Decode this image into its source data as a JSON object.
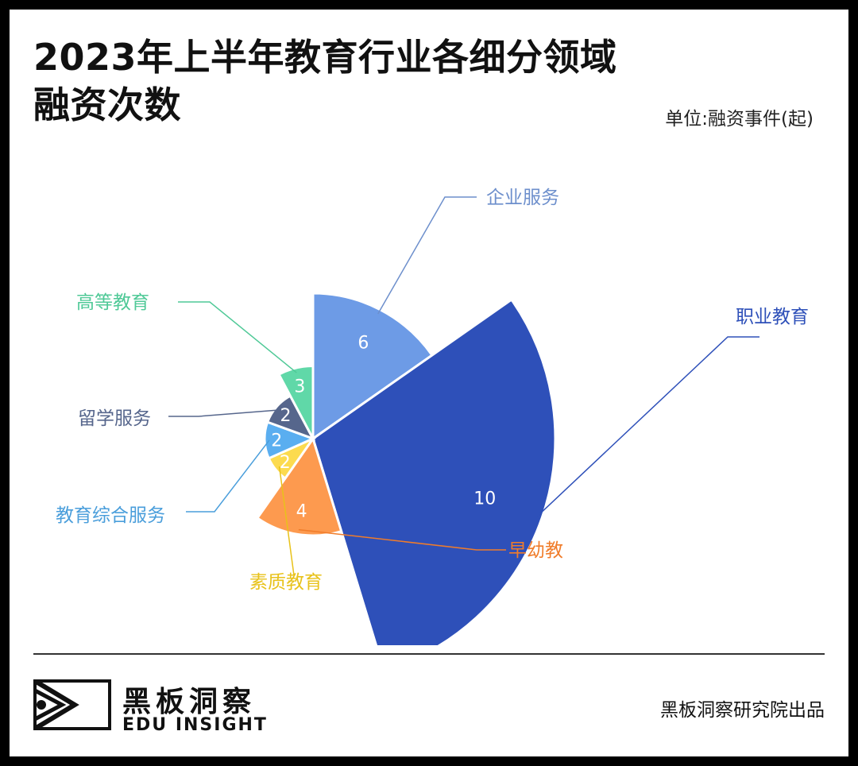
{
  "header": {
    "title_line1": "2023年上半年教育行业各细分领域",
    "title_line2": "融资次数",
    "unit": "单位:融资事件(起)"
  },
  "chart_data": {
    "type": "rose",
    "title": "2023年上半年教育行业各细分领域融资次数",
    "unit": "单位:融资事件(起)",
    "categories": [
      "企业服务",
      "职业教育",
      "早幼教",
      "素质教育",
      "教育综合服务",
      "留学服务",
      "高等教育"
    ],
    "values": [
      6,
      10,
      4,
      2,
      2,
      2,
      3
    ],
    "colors": [
      "#6d9be6",
      "#2e50b9",
      "#fd9a4f",
      "#fcdb4f",
      "#5aaef0",
      "#56668c",
      "#60d8a8"
    ],
    "label_colors": [
      "#6d8fcc",
      "#2e50b9",
      "#f07c2a",
      "#e8c21a",
      "#4a9edb",
      "#56668c",
      "#4fc997"
    ],
    "start_angle_deg": 0,
    "angle_spans_deg": [
      55,
      108,
      52,
      31,
      44,
      42,
      28
    ]
  },
  "footer": {
    "brand_cn": "黑板洞察",
    "brand_en": "EDU INSIGHT",
    "source": "黑板洞察研究院出品"
  }
}
